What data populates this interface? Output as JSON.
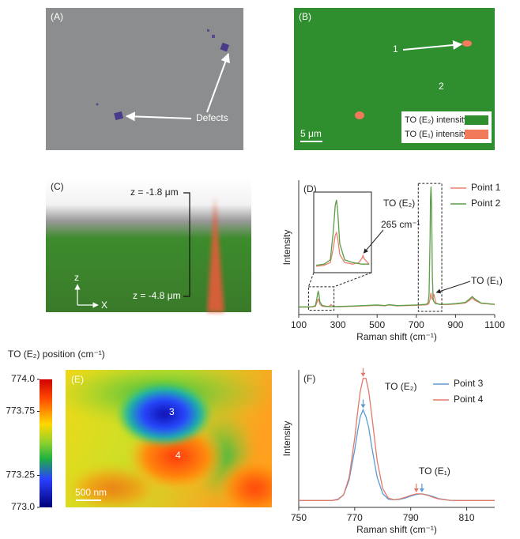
{
  "panels": {
    "A": {
      "label": "(A)",
      "annotation": "Defects"
    },
    "B": {
      "label": "(B)",
      "points": [
        "1",
        "2"
      ],
      "legend": [
        "TO (E₂) intensity",
        "TO (E₁) intensity"
      ],
      "legend_colors": [
        "#2f8f2f",
        "#f07a5a"
      ],
      "scale_bar": "5 μm"
    },
    "C": {
      "label": "(C)",
      "top": "z = -1.8 μm",
      "bottom": "z = -4.8 μm",
      "axes": [
        "z",
        "X"
      ]
    },
    "E": {
      "label": "(E)",
      "colorbar_title": "TO (E₂) position (cm⁻¹)",
      "clim": [
        773,
        774
      ],
      "cticks": [
        {
          "value": 774,
          "label": "774.0"
        },
        773.75,
        773.25,
        {
          "value": 773,
          "label": "773.0"
        }
      ],
      "points": [
        "3",
        "4"
      ],
      "scale_bar": "500 nm"
    }
  },
  "chart_data": [
    {
      "type": "line",
      "label": "(D)",
      "xlabel": "Raman shift (cm⁻¹)",
      "ylabel": "Intensity",
      "x": [
        100,
        150,
        170,
        185,
        192,
        197,
        200,
        203,
        208,
        220,
        240,
        255,
        262,
        265,
        268,
        280,
        300,
        400,
        500,
        540,
        560,
        600,
        700,
        750,
        760,
        765,
        770,
        772,
        775,
        778,
        782,
        786,
        790,
        795,
        800,
        820,
        850,
        900,
        950,
        970,
        985,
        1000,
        1030,
        1100
      ],
      "series": [
        {
          "name": "Point 1",
          "color": "#e8806e",
          "values": [
            0.058,
            0.058,
            0.06,
            0.065,
            0.09,
            0.115,
            0.12,
            0.11,
            0.08,
            0.065,
            0.062,
            0.065,
            0.072,
            0.078,
            0.072,
            0.062,
            0.061,
            0.066,
            0.072,
            0.068,
            0.075,
            0.068,
            0.072,
            0.076,
            0.08,
            0.09,
            0.12,
            0.15,
            0.17,
            0.13,
            0.12,
            0.14,
            0.16,
            0.12,
            0.09,
            0.078,
            0.078,
            0.082,
            0.09,
            0.11,
            0.13,
            0.11,
            0.088,
            0.078
          ]
        },
        {
          "name": "Point 2",
          "color": "#5a9e46",
          "values": [
            0.06,
            0.06,
            0.062,
            0.07,
            0.12,
            0.17,
            0.18,
            0.16,
            0.1,
            0.07,
            0.065,
            0.063,
            0.062,
            0.062,
            0.062,
            0.062,
            0.063,
            0.068,
            0.075,
            0.07,
            0.078,
            0.07,
            0.075,
            0.08,
            0.09,
            0.15,
            0.6,
            0.9,
            1.0,
            0.85,
            0.3,
            0.12,
            0.1,
            0.09,
            0.085,
            0.08,
            0.08,
            0.085,
            0.095,
            0.12,
            0.14,
            0.12,
            0.09,
            0.08
          ]
        }
      ],
      "xlim": [
        100,
        1100
      ],
      "xticks": [
        100,
        300,
        500,
        700,
        900,
        1100
      ],
      "ylim": [
        0,
        1.05
      ],
      "zoom_box": {
        "xlim": [
          150,
          280
        ]
      },
      "peak_box": {
        "xlim": [
          710,
          830
        ]
      },
      "annotations": [
        "TO (E₂)",
        "TO (E₁)",
        "265 cm⁻¹"
      ]
    },
    {
      "type": "line",
      "label": "(F)",
      "xlabel": "Raman shift (cm⁻¹)",
      "ylabel": "Intensity",
      "x": [
        750,
        754,
        758,
        762,
        764,
        766,
        768,
        770,
        771,
        772,
        773,
        774,
        775,
        776,
        778,
        780,
        782,
        784,
        786,
        788,
        790,
        792,
        794,
        796,
        798,
        800,
        804,
        808,
        812,
        816,
        820
      ],
      "series": [
        {
          "name": "Point 3",
          "color": "#5b9bd5",
          "values": [
            0.05,
            0.05,
            0.05,
            0.051,
            0.06,
            0.09,
            0.2,
            0.42,
            0.55,
            0.66,
            0.71,
            0.66,
            0.58,
            0.45,
            0.22,
            0.1,
            0.06,
            0.055,
            0.058,
            0.068,
            0.082,
            0.094,
            0.098,
            0.09,
            0.078,
            0.064,
            0.052,
            0.05,
            0.05,
            0.05,
            0.05
          ]
        },
        {
          "name": "Point 4",
          "color": "#e07a6a",
          "values": [
            0.05,
            0.05,
            0.05,
            0.05,
            0.056,
            0.09,
            0.218,
            0.506,
            0.686,
            0.844,
            0.938,
            0.938,
            0.844,
            0.686,
            0.342,
            0.136,
            0.067,
            0.056,
            0.061,
            0.073,
            0.088,
            0.098,
            0.098,
            0.088,
            0.073,
            0.061,
            0.051,
            0.05,
            0.05,
            0.05,
            0.05
          ]
        }
      ],
      "xlim": [
        750,
        820
      ],
      "xticks": [
        750,
        770,
        790,
        810
      ],
      "ylim": [
        0,
        1
      ],
      "annotations": [
        "TO (E₂)",
        "TO (E₁)"
      ]
    }
  ]
}
